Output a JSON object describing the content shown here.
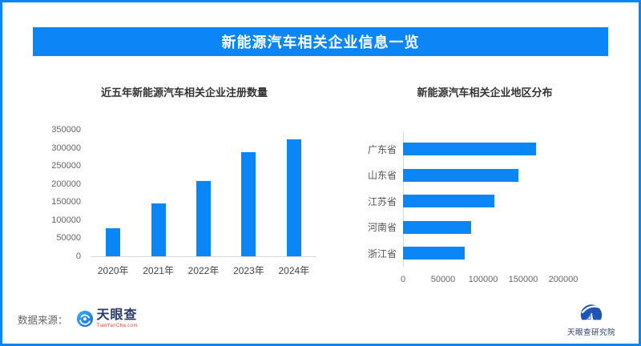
{
  "colors": {
    "accent_blue": "#0a86f6",
    "header_text": "#ffffff",
    "axis_line": "#d9d9d9",
    "tick_text": "#666666",
    "logo_navy": "#2b3a66",
    "logo_red": "#e03c2e",
    "research_logo_blue": "#1e55b4"
  },
  "header": {
    "title": "新能源汽车相关企业信息一览"
  },
  "chart_data": [
    {
      "type": "bar",
      "orientation": "vertical",
      "title": "近五年新能源汽车相关企业注册数量",
      "categories": [
        "2020年",
        "2021年",
        "2022年",
        "2023年",
        "2024年"
      ],
      "values": [
        77000,
        146000,
        209000,
        289000,
        323000
      ],
      "ylim": [
        0,
        350000
      ],
      "yticks": [
        0,
        50000,
        100000,
        150000,
        200000,
        250000,
        300000,
        350000
      ],
      "xlabel": "",
      "ylabel": "",
      "bar_color": "#0a86f6",
      "grid": false,
      "legend": "none"
    },
    {
      "type": "bar",
      "orientation": "horizontal",
      "title": "新能源汽车相关企业地区分布",
      "categories": [
        "广东省",
        "山东省",
        "江苏省",
        "河南省",
        "浙江省"
      ],
      "values": [
        166000,
        144000,
        114000,
        85000,
        77000
      ],
      "xlim": [
        0,
        230000
      ],
      "xticks": [
        0,
        50000,
        100000,
        150000,
        200000
      ],
      "xlabel": "",
      "ylabel": "",
      "bar_color": "#0a86f6",
      "grid": false,
      "legend": "none"
    }
  ],
  "footer": {
    "source_label": "数据来源：",
    "tianyancha": {
      "name": "天眼查",
      "domain": "TianYanCha.com"
    },
    "research": {
      "name": "天眼查研究院"
    }
  },
  "icons": {
    "tianyancha_eye": "blue-circle-eye-swirl",
    "research_badge": "blue-sail-house-badge"
  }
}
